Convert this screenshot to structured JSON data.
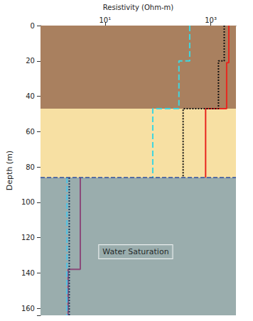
{
  "chart_data": {
    "type": "line",
    "x_label": "Resistivity (Ohm-m)",
    "y_label": "Depth (m)",
    "log": "x",
    "grid": false,
    "xlim": [
      0.6,
      3000
    ],
    "xticks": [
      {
        "value": 10,
        "label": "10¹"
      },
      {
        "value": 1000,
        "label": "10³"
      }
    ],
    "ylim": [
      0,
      164
    ],
    "yticks": [
      0,
      20,
      40,
      60,
      80,
      100,
      120,
      140,
      160
    ],
    "layers": [
      {
        "top": 0,
        "bottom": 47,
        "color": "#a9805f"
      },
      {
        "top": 47,
        "bottom": 86,
        "color": "#f7e0a3"
      },
      {
        "top": 86,
        "bottom": 164,
        "color": "#9aadad"
      }
    ],
    "reference_lines": [
      {
        "value": 86,
        "color": "#2f4fa0",
        "line_style": "dashed"
      }
    ],
    "series": [
      {
        "color": "#e8271f",
        "line_style": "solid",
        "values": [
          [
            2200,
            0
          ],
          [
            2200,
            21
          ],
          [
            2000,
            21
          ],
          [
            2000,
            47
          ],
          [
            800,
            47
          ],
          [
            800,
            86
          ]
        ]
      },
      {
        "color": "#111111",
        "line_style": "dotted",
        "values": [
          [
            1800,
            0
          ],
          [
            1800,
            20
          ],
          [
            1400,
            20
          ],
          [
            1400,
            47
          ],
          [
            300,
            47
          ],
          [
            300,
            86
          ]
        ]
      },
      {
        "color": "#3fd6e0",
        "line_style": "dashed",
        "values": [
          [
            400,
            0
          ],
          [
            400,
            20
          ],
          [
            250,
            20
          ],
          [
            250,
            47
          ],
          [
            80,
            47
          ],
          [
            80,
            86
          ]
        ]
      },
      {
        "color": "#8a4a7a",
        "line_style": "solid",
        "values": [
          [
            3.4,
            86
          ],
          [
            3.4,
            138
          ],
          [
            2,
            138
          ],
          [
            2,
            164
          ]
        ]
      },
      {
        "color": "#1a3a5c",
        "line_style": "dotted",
        "values": [
          [
            2.1,
            86
          ],
          [
            2.1,
            164
          ]
        ]
      },
      {
        "color": "#4fc3e6",
        "line_style": "dashed",
        "values": [
          [
            1.9,
            86
          ],
          [
            1.9,
            164
          ]
        ]
      }
    ],
    "annotations": [
      {
        "text": "Water Saturation",
        "x": 38,
        "y": 128
      }
    ]
  }
}
